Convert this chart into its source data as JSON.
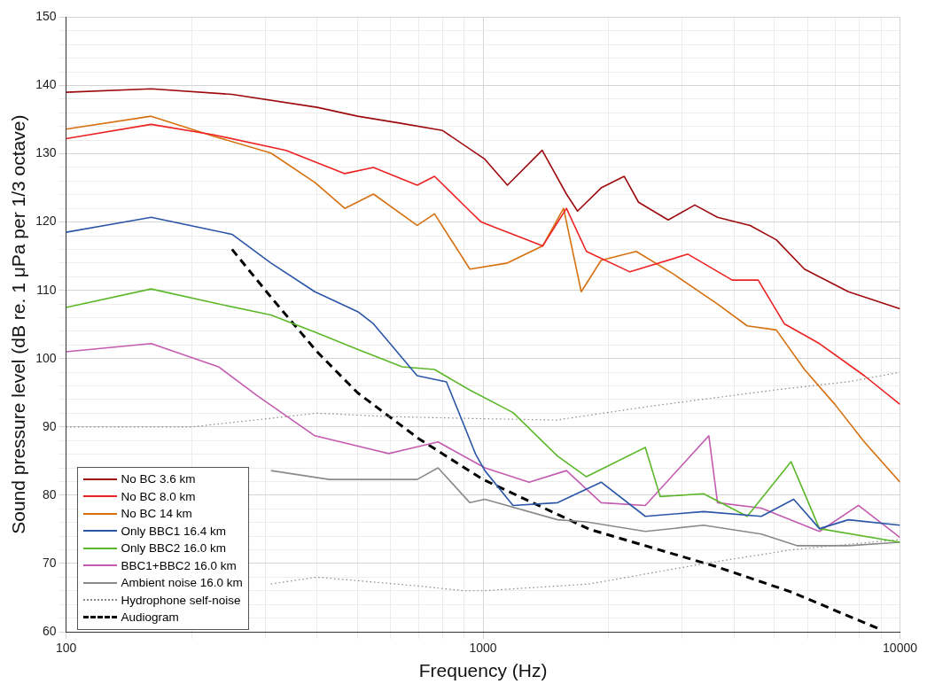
{
  "chart_data": {
    "type": "line",
    "xlabel": "Frequency (Hz)",
    "ylabel": "Sound pressure level (dB re. 1 μPa per 1/3 octave)",
    "log": "x",
    "grid": true,
    "legend": "bottom left",
    "xlim": [
      100,
      10000
    ],
    "ylim": [
      60,
      150
    ],
    "xticks": [
      100,
      {
        "value": 200,
        "label": null
      },
      {
        "value": 300,
        "label": null
      },
      {
        "value": 400,
        "label": null
      },
      {
        "value": 500,
        "label": null
      },
      {
        "value": 600,
        "label": null
      },
      {
        "value": 700,
        "label": null
      },
      {
        "value": 800,
        "label": null
      },
      {
        "value": 900,
        "label": null
      },
      1000,
      {
        "value": 2000,
        "label": null
      },
      {
        "value": 3000,
        "label": null
      },
      {
        "value": 4000,
        "label": null
      },
      {
        "value": 5000,
        "label": null
      },
      {
        "value": 6000,
        "label": null
      },
      {
        "value": 7000,
        "label": null
      },
      {
        "value": 8000,
        "label": null
      },
      {
        "value": 9000,
        "label": null
      },
      10000
    ],
    "yticks": [
      60,
      {
        "value": 62,
        "label": null
      },
      {
        "value": 64,
        "label": null
      },
      {
        "value": 66,
        "label": null
      },
      {
        "value": 68,
        "label": null
      },
      70,
      {
        "value": 72,
        "label": null
      },
      {
        "value": 74,
        "label": null
      },
      {
        "value": 76,
        "label": null
      },
      {
        "value": 78,
        "label": null
      },
      80,
      {
        "value": 82,
        "label": null
      },
      {
        "value": 84,
        "label": null
      },
      {
        "value": 86,
        "label": null
      },
      {
        "value": 88,
        "label": null
      },
      90,
      {
        "value": 92,
        "label": null
      },
      {
        "value": 94,
        "label": null
      },
      {
        "value": 96,
        "label": null
      },
      {
        "value": 98,
        "label": null
      },
      100,
      {
        "value": 102,
        "label": null
      },
      {
        "value": 104,
        "label": null
      },
      {
        "value": 106,
        "label": null
      },
      {
        "value": 108,
        "label": null
      },
      110,
      {
        "value": 112,
        "label": null
      },
      {
        "value": 114,
        "label": null
      },
      {
        "value": 116,
        "label": null
      },
      {
        "value": 118,
        "label": null
      },
      120,
      {
        "value": 122,
        "label": null
      },
      {
        "value": 124,
        "label": null
      },
      {
        "value": 126,
        "label": null
      },
      {
        "value": 128,
        "label": null
      },
      130,
      {
        "value": 132,
        "label": null
      },
      {
        "value": 134,
        "label": null
      },
      {
        "value": 136,
        "label": null
      },
      {
        "value": 138,
        "label": null
      },
      140,
      {
        "value": 142,
        "label": null
      },
      {
        "value": 144,
        "label": null
      },
      {
        "value": 146,
        "label": null
      },
      {
        "value": 148,
        "label": null
      },
      150
    ],
    "series": [
      {
        "name": "No BC 3.6 km",
        "color": "#9e0b0f",
        "line_style": "solid",
        "x": [
          100,
          160,
          250,
          400,
          500,
          630,
          800,
          1010,
          1144,
          1386,
          1585,
          1685,
          1920,
          2180,
          2360,
          2780,
          3220,
          3650,
          4370,
          5050,
          5900,
          7520,
          10000
        ],
        "values": [
          139,
          139.5,
          138.7,
          136.8,
          135.5,
          134.5,
          133.4,
          129.2,
          125.4,
          130.5,
          124.1,
          121.6,
          125,
          126.7,
          122.9,
          120.3,
          122.5,
          120.7,
          119.5,
          117.4,
          113.1,
          109.8,
          107.3
        ]
      },
      {
        "name": "No BC 8.0 km",
        "color": "#ee2222",
        "line_style": "solid",
        "x": [
          100,
          160,
          225,
          337,
          466,
          546,
          695,
          765,
          930,
          990,
          1390,
          1585,
          1770,
          2250,
          3100,
          3960,
          4570,
          5280,
          6410,
          8210,
          10000
        ],
        "values": [
          132.2,
          134.3,
          132.8,
          130.5,
          127.1,
          128,
          125.4,
          126.7,
          121.6,
          120,
          116.5,
          122,
          115.7,
          112.7,
          115.3,
          111.5,
          111.5,
          105.1,
          102.2,
          97.5,
          93.3
        ]
      },
      {
        "name": "No BC 14 km",
        "color": "#d7700f",
        "line_style": "solid",
        "x": [
          100,
          160,
          225,
          310,
          395,
          466,
          546,
          695,
          765,
          930,
          1144,
          1390,
          1560,
          1720,
          1920,
          2330,
          2860,
          3650,
          4300,
          5050,
          5900,
          6980,
          8210,
          10000
        ],
        "values": [
          133.6,
          135.5,
          132.6,
          130.1,
          125.8,
          122,
          124.1,
          119.5,
          121.2,
          113.1,
          114,
          116.5,
          122,
          109.8,
          114.4,
          115.7,
          112.4,
          108,
          104.8,
          104.2,
          98.4,
          93.3,
          87.8,
          81.9
        ]
      },
      {
        "name": "Only BBC1 16.4 km",
        "color": "#2b56a8",
        "line_style": "solid",
        "x": [
          100,
          160,
          250,
          310,
          395,
          503,
          546,
          695,
          817,
          960,
          1010,
          1180,
          1510,
          1920,
          2450,
          3380,
          4650,
          5560,
          6410,
          7520,
          10000
        ],
        "values": [
          118.5,
          120.7,
          118.2,
          114,
          109.8,
          106.8,
          105.1,
          97.5,
          96.6,
          86,
          83.6,
          78.5,
          78.9,
          81.9,
          76.9,
          77.6,
          76.9,
          79.4,
          75.1,
          76.4,
          75.6
        ]
      },
      {
        "name": "Only BBC2 16.0 km",
        "color": "#5cb82a",
        "line_style": "solid",
        "x": [
          100,
          160,
          232,
          310,
          395,
          503,
          640,
          765,
          930,
          1180,
          1510,
          1770,
          2450,
          2660,
          3380,
          4300,
          5480,
          6410,
          10000
        ],
        "values": [
          107.5,
          110.2,
          108,
          106.4,
          103.9,
          101.3,
          98.8,
          98.4,
          95.4,
          92.1,
          85.7,
          82.7,
          87,
          79.8,
          80.2,
          76.9,
          84.9,
          75.1,
          73.1
        ]
      },
      {
        "name": "BBC1+BBC2 16.0 km",
        "color": "#c45bb0",
        "line_style": "solid",
        "x": [
          100,
          160,
          232,
          287,
          395,
          594,
          780,
          1010,
          1290,
          1585,
          1920,
          2450,
          3480,
          3650,
          4650,
          6410,
          7950,
          10000
        ],
        "values": [
          101,
          102.2,
          98.8,
          94.6,
          88.7,
          86.1,
          87.8,
          84,
          81.9,
          83.6,
          78.9,
          78.5,
          88.7,
          78.9,
          78.1,
          74.7,
          78.5,
          73.8
        ]
      },
      {
        "name": "Ambient noise 16.0 km",
        "color": "#8a8a8a",
        "line_style": "solid",
        "x": [
          310,
          428,
          695,
          780,
          930,
          1010,
          1510,
          1770,
          2450,
          3380,
          4650,
          5680,
          7520,
          10000
        ],
        "values": [
          83.6,
          82.3,
          82.3,
          84,
          78.9,
          79.4,
          76.4,
          76.1,
          74.7,
          75.6,
          74.3,
          72.6,
          72.6,
          73.1
        ]
      },
      {
        "name": "Hydrophone self-noise",
        "color": "#888888",
        "line_style": "dotted",
        "x": [
          100,
          200,
          400,
          600,
          1000,
          1500,
          2500,
          5000,
          7500,
          10000
        ],
        "values": [
          90,
          90,
          92,
          91.5,
          91.2,
          91,
          93,
          95.4,
          96.6,
          98
        ]
      },
      {
        "color": "#888888",
        "line_style": "dotted",
        "x": [
          310,
          400,
          700,
          900,
          1000,
          1800,
          3400,
          5500,
          7500,
          10000
        ],
        "values": [
          67,
          68,
          66.7,
          66,
          66,
          67,
          70,
          72,
          72.8,
          73.5
        ]
      },
      {
        "name": "Audiogram",
        "color": "#000000",
        "line_style": "dashed",
        "x": [
          250,
          310,
          400,
          500,
          700,
          1000,
          1800,
          3600,
          5500,
          9000
        ],
        "values": [
          116,
          109,
          101,
          95,
          88.3,
          82.3,
          75,
          69.6,
          65.8,
          60.3
        ]
      }
    ]
  }
}
